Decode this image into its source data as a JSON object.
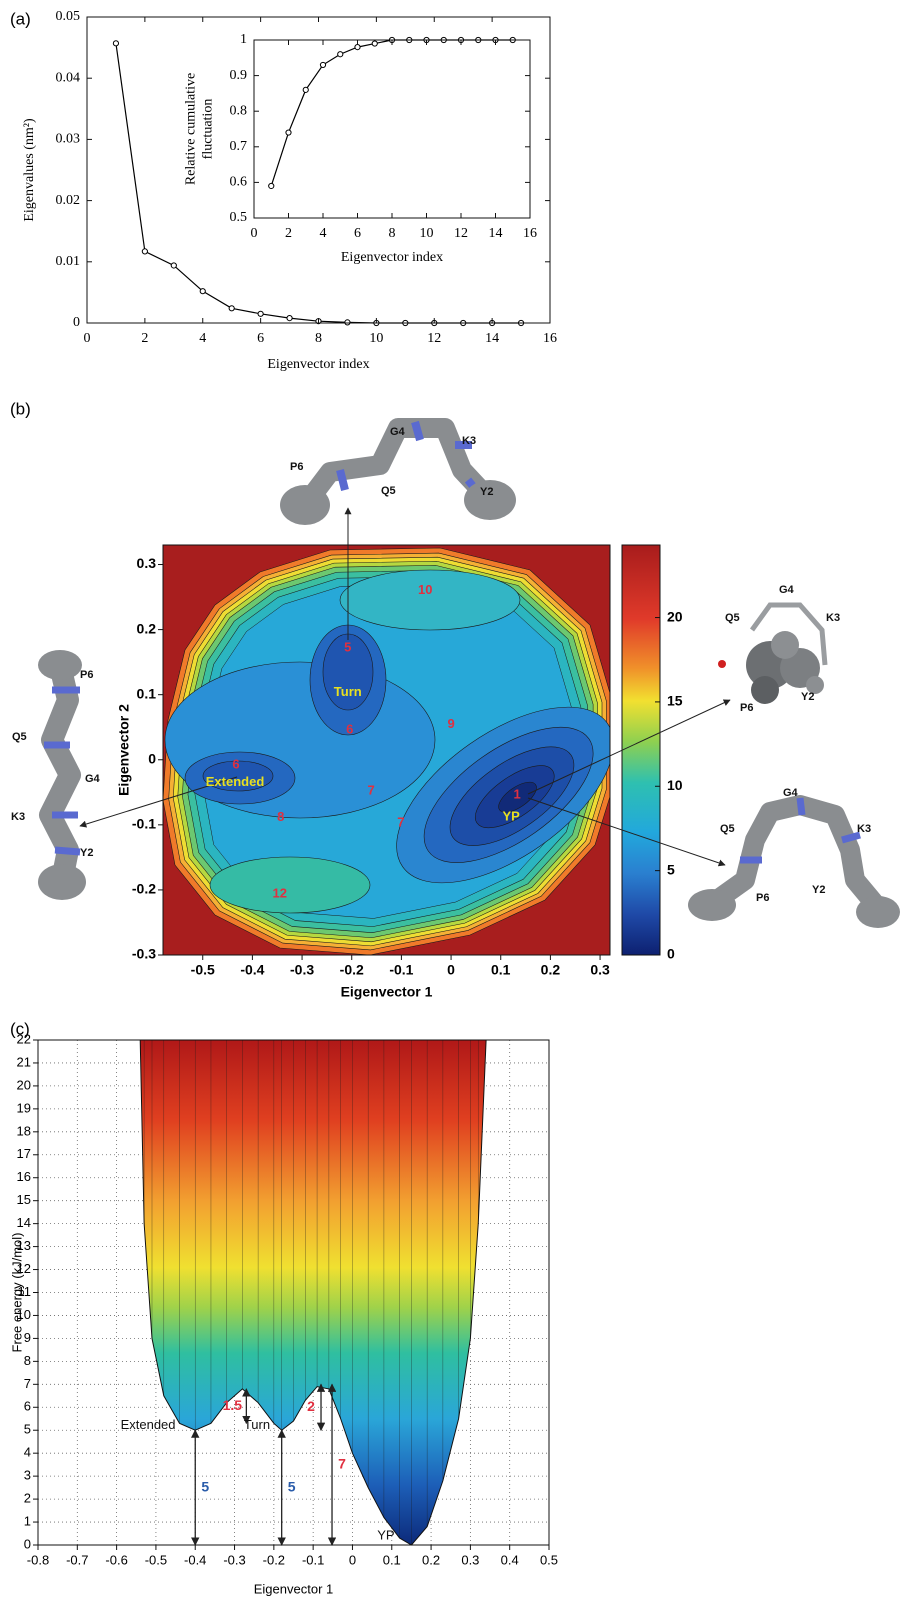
{
  "chart_data": [
    {
      "type": "line",
      "panel": "(a)",
      "xlabel": "Eigenvector index",
      "ylabel": "Eigenvalues (nm²)",
      "x": [
        1,
        2,
        3,
        4,
        5,
        6,
        7,
        8,
        9,
        10,
        11,
        12,
        13,
        14,
        15
      ],
      "values": [
        0.0457,
        0.0117,
        0.0094,
        0.0052,
        0.0024,
        0.0015,
        0.0008,
        0.0003,
        0.0001,
        0,
        0,
        0,
        0,
        0,
        0
      ],
      "color": "#000000",
      "xlim": [
        0,
        16
      ],
      "ylim": [
        0,
        0.05
      ],
      "xticks": [
        0,
        2,
        4,
        6,
        8,
        10,
        12,
        14,
        16
      ],
      "yticks": [
        0,
        0.01,
        0.02,
        0.03,
        0.04,
        0.05
      ],
      "grid": false
    },
    {
      "type": "line",
      "xlabel": "Eigenvector index",
      "ylabel": [
        "Relative cumulative",
        "fluctuation"
      ],
      "x": [
        1,
        2,
        3,
        4,
        5,
        6,
        7,
        8,
        9,
        10,
        11,
        12,
        13,
        14,
        15
      ],
      "values": [
        0.59,
        0.74,
        0.86,
        0.93,
        0.96,
        0.98,
        0.99,
        1,
        1,
        1,
        1,
        1,
        1,
        1,
        1
      ],
      "color": "#000000",
      "xlim": [
        0,
        16
      ],
      "ylim": [
        0.5,
        1
      ],
      "xticks": [
        0,
        2,
        4,
        6,
        8,
        10,
        12,
        14,
        16
      ],
      "yticks": [
        0.5,
        0.6,
        0.7,
        0.8,
        0.9,
        1
      ],
      "grid": false
    },
    {
      "type": "contour",
      "panel": "(b)",
      "xlabel": "Eigenvector 1",
      "ylabel": "Eigenvector 2",
      "xlim": [
        -0.58,
        0.32
      ],
      "ylim": [
        -0.3,
        0.33
      ],
      "xticks": [
        -0.5,
        -0.4,
        -0.3,
        -0.2,
        -0.1,
        0,
        0.1,
        0.2,
        0.3
      ],
      "yticks": [
        -0.3,
        -0.2,
        -0.1,
        0,
        0.1,
        0.2,
        0.3
      ],
      "grid": false,
      "colorbar_lim": [
        0,
        24.3
      ],
      "colorbar_ticks": [
        0,
        5,
        10,
        15,
        20
      ],
      "annotations": [
        {
          "text": "10",
          "x": -0.052,
          "y": 0.26,
          "color": "#e03040"
        },
        {
          "text": "5",
          "x": -0.208,
          "y": 0.172,
          "color": "#e03040"
        },
        {
          "text": "Turn",
          "x": -0.208,
          "y": 0.103,
          "color": "#e8e020"
        },
        {
          "text": "6",
          "x": -0.204,
          "y": 0.046,
          "color": "#e03040"
        },
        {
          "text": "9",
          "x": 0.0,
          "y": 0.054,
          "color": "#e03040"
        },
        {
          "text": "6",
          "x": -0.433,
          "y": -0.008,
          "color": "#e03040"
        },
        {
          "text": "Extended",
          "x": -0.435,
          "y": -0.035,
          "color": "#e8e020"
        },
        {
          "text": "7",
          "x": -0.161,
          "y": -0.048,
          "color": "#e03040"
        },
        {
          "text": "8",
          "x": -0.343,
          "y": -0.089,
          "color": "#e03040"
        },
        {
          "text": "7",
          "x": -0.101,
          "y": -0.097,
          "color": "#e03040"
        },
        {
          "text": "1",
          "x": 0.133,
          "y": -0.054,
          "color": "#e03040"
        },
        {
          "text": "YP",
          "x": 0.121,
          "y": -0.088,
          "color": "#e8e020"
        },
        {
          "text": "12",
          "x": -0.345,
          "y": -0.206,
          "color": "#e03040"
        }
      ],
      "structures": [
        {
          "labels": [
            "G4",
            "K3",
            "P6",
            "Q5",
            "Y2"
          ]
        },
        {
          "labels": [
            "P6",
            "Q5",
            "G4",
            "K3",
            "Y2"
          ]
        },
        {
          "labels": [
            "G4",
            "K3",
            "Q5",
            "P6",
            "Y2"
          ]
        },
        {
          "labels": [
            "G4",
            "Q5",
            "K3",
            "Y2",
            "P6"
          ]
        }
      ]
    },
    {
      "type": "surface",
      "panel": "(c)",
      "xlabel": "Eigenvector 1",
      "ylabel": "Free energy (kJ/mol)",
      "xlim": [
        -0.8,
        0.5
      ],
      "ylim": [
        0,
        22
      ],
      "xticks": [
        -0.8,
        -0.7,
        -0.6,
        -0.5,
        -0.4,
        -0.3,
        -0.2,
        -0.1,
        0,
        0.1,
        0.2,
        0.3,
        0.4,
        0.5
      ],
      "yticks": [
        0,
        1,
        2,
        3,
        4,
        5,
        6,
        7,
        8,
        9,
        10,
        11,
        12,
        13,
        14,
        15,
        16,
        17,
        18,
        19,
        20,
        21,
        22
      ],
      "grid": true,
      "x": [
        -0.54,
        -0.53,
        -0.51,
        -0.48,
        -0.44,
        -0.4,
        -0.36,
        -0.32,
        -0.28,
        -0.24,
        -0.2,
        -0.18,
        -0.15,
        -0.12,
        -0.09,
        -0.06,
        -0.03,
        0,
        0.04,
        0.08,
        0.12,
        0.15,
        0.19,
        0.23,
        0.27,
        0.3,
        0.32,
        0.34
      ],
      "values": [
        22,
        14,
        9,
        6.5,
        5.3,
        5,
        5.3,
        6.2,
        6.8,
        6.2,
        5.3,
        5,
        5.4,
        6.3,
        6.9,
        6.8,
        5.5,
        4,
        2.5,
        1.2,
        0.3,
        0,
        0.8,
        2.8,
        5.5,
        9,
        14,
        22
      ],
      "arrows": [
        {
          "x": -0.4,
          "from": 0,
          "to": 5,
          "label": "5",
          "color": "#2a5caa"
        },
        {
          "x": -0.18,
          "from": 0,
          "to": 5,
          "label": "5",
          "color": "#2a5caa"
        },
        {
          "x": -0.052,
          "from": 0,
          "to": 7,
          "label": "7",
          "color": "#e03040"
        },
        {
          "x": -0.27,
          "from": 5.3,
          "to": 6.8,
          "label": "1.5",
          "color": "#e03040"
        },
        {
          "x": -0.08,
          "from": 5,
          "to": 7,
          "label": "2",
          "color": "#e03040"
        }
      ],
      "annotations": [
        {
          "text": "Extended",
          "x": -0.52,
          "y": 5.2
        },
        {
          "text": "Turn",
          "x": -0.243,
          "y": 5.2
        },
        {
          "text": "YP",
          "x": 0.085,
          "y": 0.4
        }
      ]
    }
  ]
}
